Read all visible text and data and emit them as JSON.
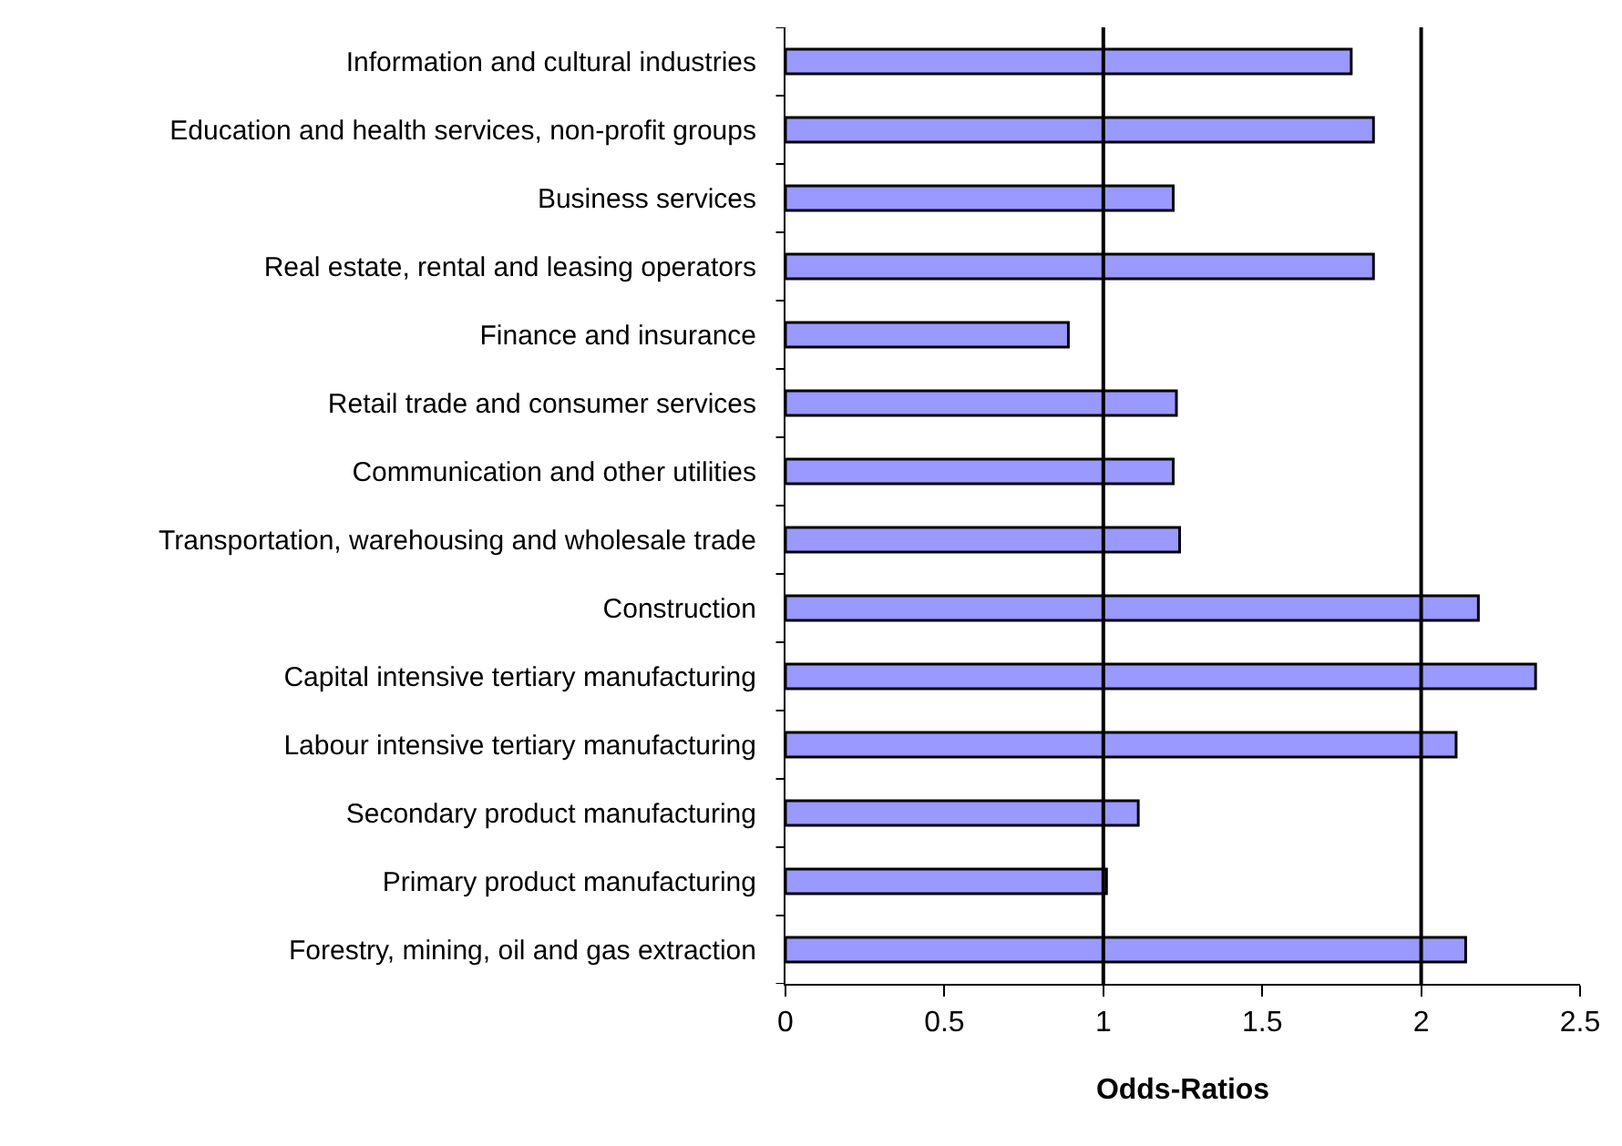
{
  "chart_data": {
    "type": "bar",
    "orientation": "horizontal",
    "xlabel": "Odds-Ratios",
    "categories": [
      "Information and cultural industries",
      "Education and health services, non-profit groups",
      "Business services",
      "Real estate, rental and leasing operators",
      "Finance and insurance",
      "Retail trade and consumer services",
      "Communication and other utilities",
      "Transportation, warehousing and wholesale trade",
      "Construction",
      "Capital intensive tertiary manufacturing",
      "Labour intensive tertiary manufacturing",
      "Secondary product manufacturing",
      "Primary product manufacturing",
      "Forestry, mining, oil and gas extraction"
    ],
    "values": [
      1.78,
      1.85,
      1.22,
      1.85,
      0.89,
      1.23,
      1.22,
      1.24,
      2.18,
      2.36,
      2.11,
      1.11,
      1.01,
      2.14
    ],
    "color": "#9999ff",
    "xlim": [
      0,
      2.5
    ],
    "xticks": [
      0,
      0.5,
      1,
      1.5,
      2,
      2.5
    ],
    "ref_lines": [
      {
        "axis": "x",
        "value": 1,
        "color": "#000000"
      },
      {
        "axis": "x",
        "value": 2,
        "color": "#000000"
      }
    ],
    "legend": false
  }
}
